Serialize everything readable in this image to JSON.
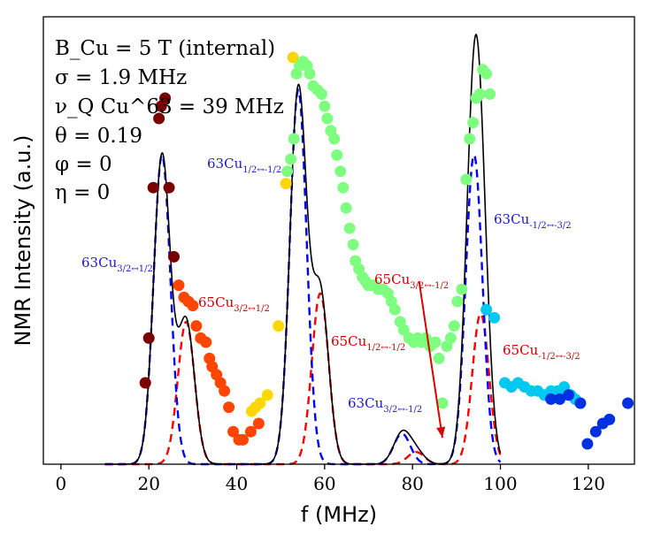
{
  "chart_data": {
    "type": "scatter",
    "title": "",
    "xlabel": "f (MHz)",
    "ylabel": "NMR Intensity (a.u.)",
    "xlim": [
      -4,
      130.5
    ],
    "ylim": [
      0,
      1.1
    ],
    "xticks": [
      0,
      20,
      40,
      60,
      80,
      100,
      120
    ],
    "xtick_labels": [
      "0",
      "20",
      "40",
      "60",
      "80",
      "100",
      "120"
    ],
    "grid": false,
    "legend": "none",
    "parameters": [
      "B_Cu = 5 T (internal)",
      "σ = 1.9 MHz",
      "ν_Q Cu^63 = 39 MHz",
      "θ = 0.19",
      "φ = 0",
      "η = 0"
    ],
    "colors": {
      "dark_red": "#7a0000",
      "orange_red": "#ff4500",
      "gold": "#ffd700",
      "light_green": "#7fff7f",
      "cyan": "#00c8f0",
      "blue": "#0030e0",
      "cu63_fit": "#0000ff",
      "cu65_fit": "#ff0000",
      "total_fit": "#000000",
      "ann_blue": "#1a1acc",
      "ann_red": "#cc0000"
    },
    "scatter_series": [
      {
        "name": "dark-red",
        "color": "#7a0000",
        "points": [
          [
            19.2,
            0.2
          ],
          [
            20.0,
            0.31
          ],
          [
            21.0,
            0.68
          ],
          [
            22.3,
            0.85
          ],
          [
            22.8,
            0.88
          ],
          [
            23.7,
            0.9
          ],
          [
            24.6,
            0.68
          ],
          [
            25.7,
            0.51
          ]
        ]
      },
      {
        "name": "orange-red",
        "color": "#ff4500",
        "points": [
          [
            26.8,
            0.44
          ],
          [
            28.0,
            0.41
          ],
          [
            29.0,
            0.4
          ],
          [
            30.0,
            0.39
          ],
          [
            30.8,
            0.34
          ],
          [
            31.8,
            0.31
          ],
          [
            33.0,
            0.3
          ],
          [
            33.8,
            0.26
          ],
          [
            34.4,
            0.24
          ],
          [
            35.4,
            0.22
          ],
          [
            36.3,
            0.2
          ],
          [
            37.2,
            0.18
          ],
          [
            38.2,
            0.14
          ],
          [
            39.2,
            0.08
          ],
          [
            40.5,
            0.06
          ],
          [
            41.4,
            0.06
          ],
          [
            43.2,
            0.08
          ],
          [
            45.0,
            0.1
          ]
        ]
      },
      {
        "name": "gold",
        "color": "#ffd700",
        "points": [
          [
            43.4,
            0.13
          ],
          [
            44.3,
            0.14
          ],
          [
            45.3,
            0.15
          ],
          [
            47.0,
            0.17
          ],
          [
            49.5,
            0.34
          ],
          [
            51.2,
            0.69
          ],
          [
            52.8,
            1.0
          ]
        ]
      },
      {
        "name": "light-green",
        "color": "#7fff7f",
        "points": [
          [
            51.5,
            0.72
          ],
          [
            52.3,
            0.75
          ],
          [
            53.0,
            0.8
          ],
          [
            53.6,
            0.96
          ],
          [
            54.3,
            0.98
          ],
          [
            55.1,
            0.99
          ],
          [
            56.0,
            0.98
          ],
          [
            56.6,
            0.96
          ],
          [
            57.4,
            0.93
          ],
          [
            58.4,
            0.92
          ],
          [
            59.3,
            0.91
          ],
          [
            60.0,
            0.88
          ],
          [
            60.6,
            0.85
          ],
          [
            61.4,
            0.82
          ],
          [
            62.2,
            0.8
          ],
          [
            62.8,
            0.76
          ],
          [
            63.6,
            0.72
          ],
          [
            64.2,
            0.68
          ],
          [
            64.9,
            0.63
          ],
          [
            65.7,
            0.58
          ],
          [
            66.5,
            0.54
          ],
          [
            67.0,
            0.5
          ],
          [
            67.8,
            0.48
          ],
          [
            68.6,
            0.46
          ],
          [
            69.3,
            0.45
          ],
          [
            69.9,
            0.44
          ],
          [
            70.6,
            0.44
          ],
          [
            71.4,
            0.44
          ],
          [
            72.2,
            0.43
          ],
          [
            73.3,
            0.43
          ],
          [
            74.4,
            0.42
          ],
          [
            75.2,
            0.4
          ],
          [
            76.0,
            0.38
          ],
          [
            77.2,
            0.35
          ],
          [
            78.0,
            0.33
          ],
          [
            79.2,
            0.31
          ],
          [
            80.3,
            0.3
          ],
          [
            81.2,
            0.31
          ],
          [
            82.0,
            0.3
          ],
          [
            83.0,
            0.31
          ],
          [
            84.0,
            0.29
          ],
          [
            85.2,
            0.3
          ],
          [
            86.0,
            0.26
          ],
          [
            86.8,
            0.15
          ],
          [
            87.8,
            0.29
          ],
          [
            88.7,
            0.31
          ],
          [
            89.5,
            0.34
          ],
          [
            90.2,
            0.4
          ],
          [
            91.2,
            0.43
          ],
          [
            92.2,
            0.7
          ],
          [
            93.0,
            0.8
          ],
          [
            93.8,
            0.84
          ],
          [
            94.5,
            0.9
          ],
          [
            95.3,
            0.91
          ],
          [
            96.0,
            0.97
          ],
          [
            96.8,
            0.96
          ],
          [
            97.6,
            0.91
          ]
        ]
      },
      {
        "name": "cyan",
        "color": "#00c8f0",
        "points": [
          [
            96.8,
            0.38
          ],
          [
            98.6,
            0.36
          ],
          [
            101.0,
            0.2
          ],
          [
            102.5,
            0.19
          ],
          [
            104.0,
            0.2
          ],
          [
            105.5,
            0.19
          ],
          [
            107.0,
            0.18
          ],
          [
            108.5,
            0.18
          ],
          [
            110.0,
            0.17
          ],
          [
            111.5,
            0.18
          ],
          [
            113.0,
            0.18
          ],
          [
            114.5,
            0.19
          ],
          [
            116.0,
            0.17
          ],
          [
            117.0,
            0.16
          ]
        ]
      },
      {
        "name": "blue",
        "color": "#0030e0",
        "points": [
          [
            111.5,
            0.16
          ],
          [
            113.5,
            0.16
          ],
          [
            115.5,
            0.17
          ],
          [
            118.2,
            0.15
          ],
          [
            119.8,
            0.05
          ],
          [
            121.7,
            0.08
          ],
          [
            123.3,
            0.1
          ],
          [
            124.8,
            0.11
          ],
          [
            129.0,
            0.15
          ]
        ]
      }
    ],
    "fit_curves": {
      "cu63_peaks": [
        {
          "center": 23.0,
          "height": 0.76,
          "sigma": 1.9
        },
        {
          "center": 54.0,
          "height": 0.92,
          "sigma": 1.9
        },
        {
          "center": 77.6,
          "height": 0.075,
          "sigma": 1.9
        },
        {
          "center": 94.0,
          "height": 0.76,
          "sigma": 1.9
        }
      ],
      "cu65_peaks": [
        {
          "center": 28.5,
          "height": 0.35,
          "sigma": 1.9
        },
        {
          "center": 59.0,
          "height": 0.42,
          "sigma": 1.9
        },
        {
          "center": 80.8,
          "height": 0.03,
          "sigma": 1.9
        },
        {
          "center": 95.5,
          "height": 0.37,
          "sigma": 1.9
        }
      ],
      "x_range": [
        10,
        100
      ]
    },
    "annotations": [
      {
        "id": "cu63-1h",
        "base": "63Cu",
        "subscript": "3/2↔1/2",
        "color": "#1a1acc"
      },
      {
        "id": "cu63-m1h",
        "base": "63Cu",
        "subscript": "1/2↔-1/2",
        "color": "#1a1acc"
      },
      {
        "id": "cu65-1h",
        "base": "65Cu",
        "subscript": "3/2↔1/2",
        "color": "#cc0000"
      },
      {
        "id": "cu65-m1h",
        "base": "65Cu",
        "subscript": "3/2↔-1/2",
        "color": "#cc0000"
      },
      {
        "id": "cu65-mid",
        "base": "65Cu",
        "subscript": "1/2↔-1/2",
        "color": "#cc0000"
      },
      {
        "id": "cu63-m3h",
        "base": "63Cu",
        "subscript": "3/2↔-1/2",
        "color": "#1a1acc"
      },
      {
        "id": "cu63-right",
        "base": "63Cu",
        "subscript": "-1/2↔-3/2",
        "color": "#1a1acc"
      },
      {
        "id": "cu65-right",
        "base": "65Cu",
        "subscript": "-1/2↔-3/2",
        "color": "#cc0000"
      }
    ]
  }
}
